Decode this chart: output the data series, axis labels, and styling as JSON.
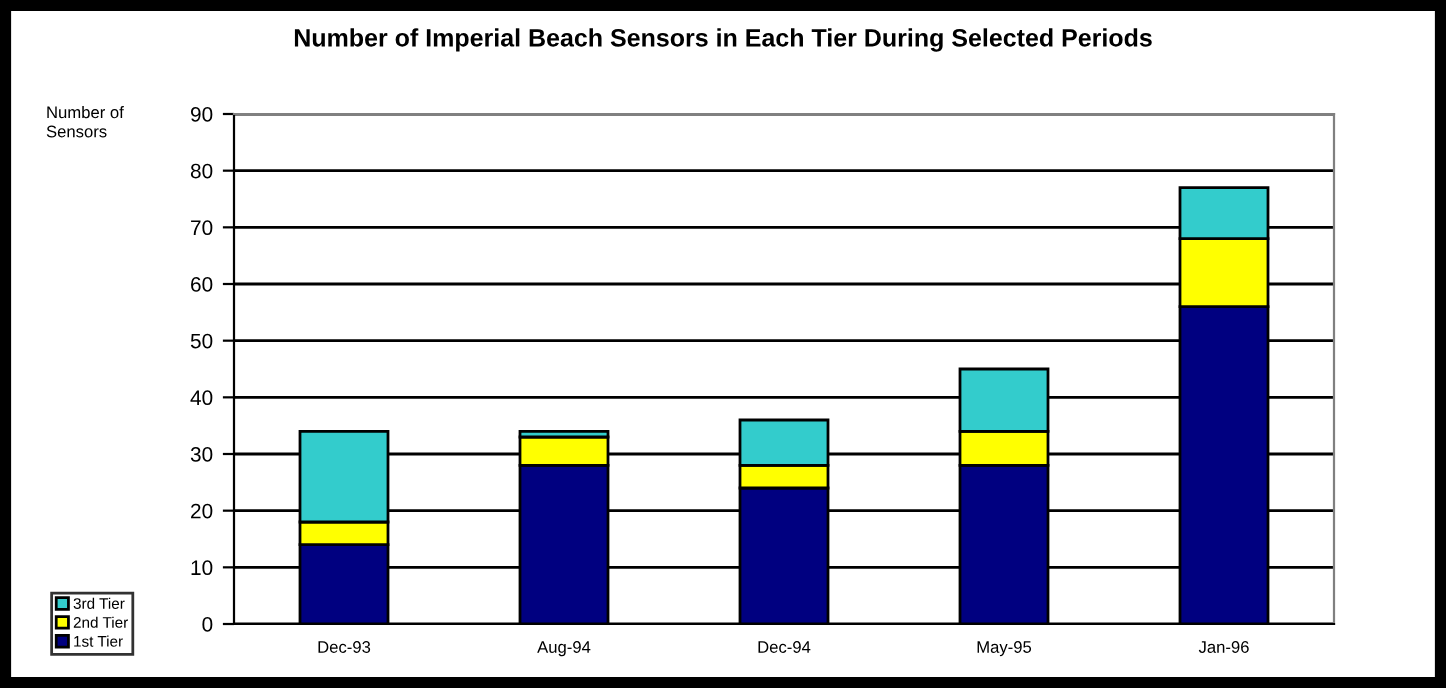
{
  "chart_data": {
    "type": "bar",
    "stacked": true,
    "title": "Number of Imperial Beach Sensors in Each Tier During Selected Periods",
    "ylabel": "Number of\nSensors",
    "categories": [
      "Dec-93",
      "Aug-94",
      "Dec-94",
      "May-95",
      "Jan-96"
    ],
    "series": [
      {
        "name": "1st Tier",
        "color": "#000080",
        "values": [
          14,
          28,
          24,
          28,
          56
        ]
      },
      {
        "name": "2nd Tier",
        "color": "#ffff00",
        "values": [
          4,
          5,
          4,
          6,
          12
        ]
      },
      {
        "name": "3rd Tier",
        "color": "#33cccc",
        "values": [
          16,
          1,
          8,
          11,
          9
        ]
      }
    ],
    "ylim": [
      0,
      90
    ],
    "yticks": [
      0,
      10,
      20,
      30,
      40,
      50,
      60,
      70,
      80,
      90
    ],
    "grid": "y",
    "legend": "bottom left"
  }
}
